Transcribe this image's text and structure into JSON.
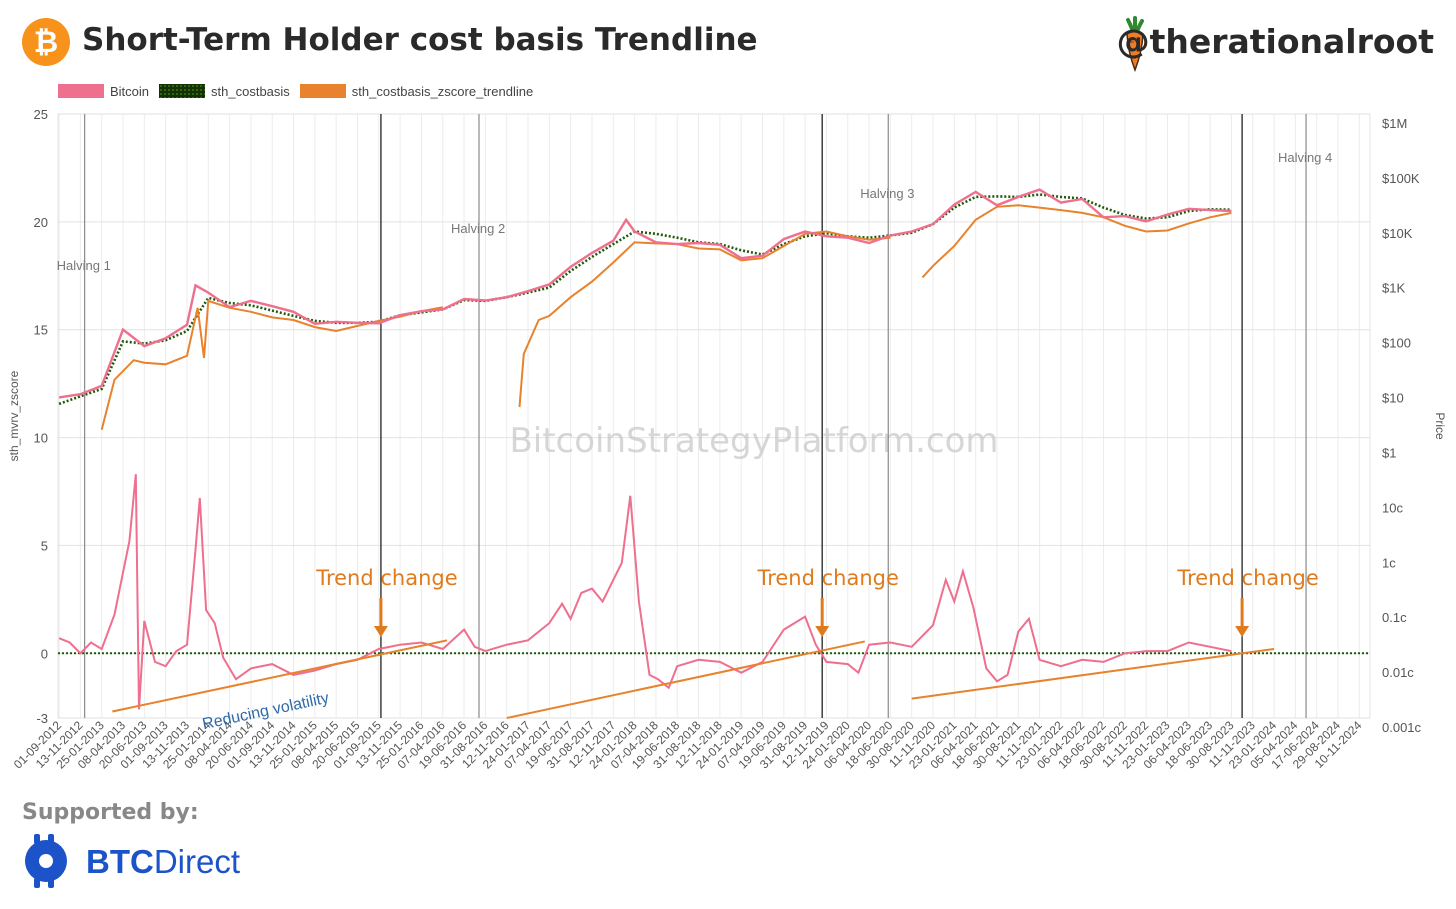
{
  "header": {
    "logo_glyph": "₿",
    "title": "Short-Term Holder cost basis Trendline",
    "handle": "@therationalroot"
  },
  "legend": [
    {
      "label": "Bitcoin",
      "color": "#ef6f8e"
    },
    {
      "label": "sth_costbasis",
      "color": "#1f5c0a"
    },
    {
      "label": "sth_costbasis_zscore_trendline",
      "color": "#e8822c"
    }
  ],
  "footer": {
    "supported_label": "Supported by:",
    "brand_bold": "BTC",
    "brand_light": "Direct"
  },
  "chart_data": {
    "type": "line",
    "watermark": "BitcoinStrategyPlatform.com",
    "left_axis": {
      "label": "sth_mvrv_zscore",
      "ticks": [
        25,
        20,
        15,
        10,
        5,
        0,
        -3
      ],
      "range": [
        -3,
        25
      ]
    },
    "right_axis": {
      "label": "Price",
      "ticks": [
        "$1M",
        "$100K",
        "$10K",
        "$1K",
        "$100",
        "$10",
        "$1",
        "10c",
        "1c",
        "0.1c",
        "0.01c",
        "0.001c"
      ],
      "log": true,
      "range_log10": [
        -5,
        6
      ]
    },
    "x_dates": [
      "01-09-2012",
      "13-11-2012",
      "25-01-2013",
      "08-04-2013",
      "20-06-2013",
      "01-09-2013",
      "13-11-2013",
      "25-01-2014",
      "08-04-2014",
      "20-06-2014",
      "01-09-2014",
      "13-11-2014",
      "25-01-2015",
      "08-04-2015",
      "20-06-2015",
      "01-09-2015",
      "13-11-2015",
      "25-01-2016",
      "07-04-2016",
      "19-06-2016",
      "31-08-2016",
      "12-11-2016",
      "24-01-2017",
      "07-04-2017",
      "19-06-2017",
      "31-08-2017",
      "12-11-2017",
      "24-01-2018",
      "07-04-2018",
      "19-06-2018",
      "31-08-2018",
      "12-11-2018",
      "24-01-2019",
      "07-04-2019",
      "19-06-2019",
      "31-08-2019",
      "12-11-2019",
      "24-01-2020",
      "06-04-2020",
      "18-06-2020",
      "30-08-2020",
      "11-11-2020",
      "23-01-2021",
      "06-04-2021",
      "18-06-2021",
      "30-08-2021",
      "11-11-2021",
      "23-01-2022",
      "06-04-2022",
      "18-06-2022",
      "30-08-2022",
      "11-11-2022",
      "23-01-2023",
      "06-04-2023",
      "18-06-2023",
      "30-08-2023",
      "11-11-2023",
      "23-01-2024",
      "05-04-2024",
      "17-06-2024",
      "29-08-2024",
      "10-11-2024"
    ],
    "events": [
      {
        "label": "Halving 1",
        "index": 1.2,
        "kind": "halving"
      },
      {
        "label": "Halving 2",
        "index": 19.7,
        "kind": "halving"
      },
      {
        "label": "Halving 3",
        "index": 38.9,
        "kind": "halving"
      },
      {
        "label": "Halving 4",
        "index": 58.5,
        "kind": "halving"
      },
      {
        "label": "Trend change",
        "index": 15.1,
        "kind": "trend"
      },
      {
        "label": "Trend change",
        "index": 35.8,
        "kind": "trend"
      },
      {
        "label": "Trend change",
        "index": 55.5,
        "kind": "trend"
      }
    ],
    "annotation": "Reducing volatility",
    "trendlines_zscore": [
      {
        "from": [
          2.5,
          -2.7
        ],
        "to": [
          18.2,
          0.6
        ]
      },
      {
        "from": [
          21.0,
          -3.0
        ],
        "to": [
          37.8,
          0.55
        ]
      },
      {
        "from": [
          40.0,
          -2.1
        ],
        "to": [
          57.0,
          0.2
        ]
      }
    ],
    "series": [
      {
        "name": "Bitcoin",
        "color": "#ef6f8e",
        "price_usd": [
          [
            0,
            10.5
          ],
          [
            1,
            12
          ],
          [
            2,
            17
          ],
          [
            3,
            180
          ],
          [
            4,
            90
          ],
          [
            5,
            125
          ],
          [
            6,
            220
          ],
          [
            6.4,
            1150
          ],
          [
            7,
            850
          ],
          [
            8,
            460
          ],
          [
            9,
            600
          ],
          [
            10,
            480
          ],
          [
            11,
            380
          ],
          [
            12,
            230
          ],
          [
            13,
            250
          ],
          [
            14,
            240
          ],
          [
            15,
            235
          ],
          [
            16,
            330
          ],
          [
            17,
            390
          ],
          [
            18,
            420
          ],
          [
            19,
            650
          ],
          [
            20,
            610
          ],
          [
            21,
            700
          ],
          [
            22,
            900
          ],
          [
            23,
            1200
          ],
          [
            24,
            2500
          ],
          [
            25,
            4500
          ],
          [
            26,
            7500
          ],
          [
            26.6,
            18000
          ],
          [
            27,
            11000
          ],
          [
            28,
            7000
          ],
          [
            29,
            6500
          ],
          [
            30,
            6800
          ],
          [
            31,
            6300
          ],
          [
            32,
            3600
          ],
          [
            33,
            4000
          ],
          [
            34,
            8000
          ],
          [
            35,
            11000
          ],
          [
            36,
            9000
          ],
          [
            37,
            8500
          ],
          [
            38,
            6800
          ],
          [
            39,
            9300
          ],
          [
            40,
            11000
          ],
          [
            41,
            15000
          ],
          [
            42,
            34000
          ],
          [
            43,
            58000
          ],
          [
            44,
            33000
          ],
          [
            45,
            47000
          ],
          [
            46,
            64000
          ],
          [
            47,
            37000
          ],
          [
            48,
            43000
          ],
          [
            49,
            20000
          ],
          [
            50,
            21000
          ],
          [
            51,
            16800
          ],
          [
            52,
            22500
          ],
          [
            53,
            28500
          ],
          [
            54,
            27000
          ],
          [
            55,
            26000
          ]
        ],
        "zscore": [
          [
            0,
            0.7
          ],
          [
            0.5,
            0.5
          ],
          [
            1,
            0
          ],
          [
            1.5,
            0.5
          ],
          [
            2,
            0.2
          ],
          [
            2.6,
            1.8
          ],
          [
            3.3,
            5.2
          ],
          [
            3.6,
            8.3
          ],
          [
            3.75,
            -2.6
          ],
          [
            4.0,
            1.5
          ],
          [
            4.5,
            -0.4
          ],
          [
            5.0,
            -0.6
          ],
          [
            5.5,
            0.1
          ],
          [
            6.0,
            0.4
          ],
          [
            6.4,
            4.8
          ],
          [
            6.6,
            7.2
          ],
          [
            6.9,
            2.0
          ],
          [
            7.3,
            1.4
          ],
          [
            7.7,
            -0.2
          ],
          [
            8.3,
            -1.2
          ],
          [
            9,
            -0.7
          ],
          [
            10,
            -0.5
          ],
          [
            11,
            -1.0
          ],
          [
            12,
            -0.8
          ],
          [
            13,
            -0.5
          ],
          [
            14,
            -0.3
          ],
          [
            15,
            0.2
          ],
          [
            16,
            0.4
          ],
          [
            17,
            0.5
          ],
          [
            18,
            0.2
          ],
          [
            19,
            1.1
          ],
          [
            19.5,
            0.3
          ],
          [
            20,
            0.1
          ],
          [
            21,
            0.4
          ],
          [
            22,
            0.6
          ],
          [
            23,
            1.4
          ],
          [
            23.6,
            2.3
          ],
          [
            24,
            1.6
          ],
          [
            24.5,
            2.8
          ],
          [
            25,
            3.0
          ],
          [
            25.5,
            2.4
          ],
          [
            26,
            3.4
          ],
          [
            26.4,
            4.2
          ],
          [
            26.8,
            7.3
          ],
          [
            27.2,
            2.4
          ],
          [
            27.7,
            -1.0
          ],
          [
            28.1,
            -1.2
          ],
          [
            28.6,
            -1.6
          ],
          [
            29,
            -0.6
          ],
          [
            30,
            -0.3
          ],
          [
            31,
            -0.4
          ],
          [
            32,
            -0.9
          ],
          [
            33,
            -0.4
          ],
          [
            34,
            1.1
          ],
          [
            35,
            1.7
          ],
          [
            35.5,
            0.4
          ],
          [
            36,
            -0.4
          ],
          [
            37,
            -0.5
          ],
          [
            37.5,
            -0.9
          ],
          [
            38,
            0.4
          ],
          [
            39,
            0.5
          ],
          [
            40,
            0.3
          ],
          [
            41,
            1.3
          ],
          [
            41.6,
            3.4
          ],
          [
            42,
            2.4
          ],
          [
            42.4,
            3.8
          ],
          [
            42.9,
            2.1
          ],
          [
            43.5,
            -0.7
          ],
          [
            44,
            -1.3
          ],
          [
            44.5,
            -1.0
          ],
          [
            45,
            1.0
          ],
          [
            45.5,
            1.6
          ],
          [
            46,
            -0.3
          ],
          [
            47,
            -0.6
          ],
          [
            48,
            -0.3
          ],
          [
            49,
            -0.4
          ],
          [
            50,
            0.0
          ],
          [
            51,
            0.1
          ],
          [
            52,
            0.1
          ],
          [
            53,
            0.5
          ],
          [
            54,
            0.3
          ],
          [
            55,
            0.1
          ]
        ]
      },
      {
        "name": "sth_costbasis",
        "color": "#1f5c0a",
        "price_usd": [
          [
            0,
            8
          ],
          [
            1,
            11
          ],
          [
            2,
            15
          ],
          [
            3,
            110
          ],
          [
            4,
            100
          ],
          [
            5,
            115
          ],
          [
            6,
            170
          ],
          [
            7,
            680
          ],
          [
            8,
            550
          ],
          [
            9,
            500
          ],
          [
            10,
            400
          ],
          [
            11,
            320
          ],
          [
            12,
            260
          ],
          [
            13,
            240
          ],
          [
            14,
            240
          ],
          [
            15,
            250
          ],
          [
            16,
            330
          ],
          [
            17,
            370
          ],
          [
            18,
            420
          ],
          [
            19,
            620
          ],
          [
            20,
            600
          ],
          [
            21,
            700
          ],
          [
            22,
            850
          ],
          [
            23,
            1050
          ],
          [
            24,
            2100
          ],
          [
            25,
            3800
          ],
          [
            26,
            6500
          ],
          [
            27,
            11000
          ],
          [
            28,
            10000
          ],
          [
            29,
            8500
          ],
          [
            30,
            7000
          ],
          [
            31,
            6500
          ],
          [
            32,
            5000
          ],
          [
            33,
            4200
          ],
          [
            34,
            6500
          ],
          [
            35,
            9000
          ],
          [
            36,
            10200
          ],
          [
            37,
            9000
          ],
          [
            38,
            8500
          ],
          [
            39,
            9300
          ],
          [
            40,
            10500
          ],
          [
            41,
            15000
          ],
          [
            42,
            30000
          ],
          [
            43,
            47000
          ],
          [
            44,
            48000
          ],
          [
            45,
            47000
          ],
          [
            46,
            52000
          ],
          [
            47,
            47000
          ],
          [
            48,
            44000
          ],
          [
            49,
            30000
          ],
          [
            50,
            22000
          ],
          [
            51,
            19000
          ],
          [
            52,
            20000
          ],
          [
            53,
            26000
          ],
          [
            54,
            28000
          ],
          [
            55,
            27500
          ]
        ]
      },
      {
        "name": "sth_costbasis_zscore_trendline",
        "color": "#e8822c",
        "segments": [
          [
            [
              2.0,
              2.7
            ],
            [
              2.6,
              22
            ],
            [
              3.5,
              50
            ],
            [
              4,
              45
            ],
            [
              5,
              42
            ],
            [
              6,
              60
            ],
            [
              6.5,
              450
            ],
            [
              6.8,
              55
            ],
            [
              7,
              600
            ],
            [
              8,
              450
            ],
            [
              9,
              380
            ],
            [
              10,
              300
            ],
            [
              11,
              270
            ],
            [
              12,
              200
            ],
            [
              13,
              170
            ],
            [
              14,
              210
            ],
            [
              15,
              260
            ],
            [
              16,
              310
            ],
            [
              17,
              390
            ],
            [
              18,
              460
            ]
          ],
          [
            [
              21.6,
              7
            ],
            [
              21.8,
              65
            ],
            [
              22.5,
              270
            ],
            [
              23,
              320
            ],
            [
              24,
              700
            ],
            [
              25,
              1350
            ],
            [
              26,
              3000
            ],
            [
              27,
              7000
            ],
            [
              28,
              6700
            ],
            [
              29,
              6500
            ],
            [
              30,
              5400
            ],
            [
              31,
              5200
            ],
            [
              32,
              3300
            ],
            [
              33,
              3600
            ],
            [
              34,
              6000
            ],
            [
              35,
              10000
            ],
            [
              36,
              11000
            ],
            [
              37,
              9000
            ],
            [
              38,
              7800
            ],
            [
              39,
              8500
            ]
          ],
          [
            [
              40.5,
              1600
            ],
            [
              41,
              2600
            ],
            [
              42,
              6000
            ],
            [
              43,
              18000
            ],
            [
              44,
              31000
            ],
            [
              45,
              33000
            ],
            [
              46,
              30000
            ],
            [
              47,
              27000
            ],
            [
              48,
              24000
            ],
            [
              49,
              20000
            ],
            [
              50,
              14000
            ],
            [
              51,
              11000
            ],
            [
              52,
              11500
            ],
            [
              53,
              15500
            ],
            [
              54,
              20000
            ],
            [
              55,
              24000
            ]
          ]
        ]
      }
    ]
  }
}
